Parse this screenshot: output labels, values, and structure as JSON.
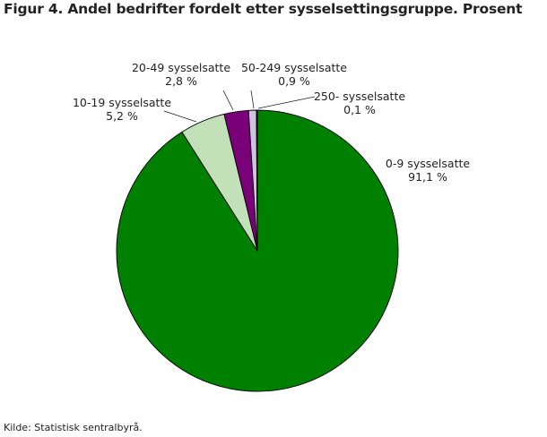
{
  "title": "Figur 4. Andel bedrifter fordelt etter sysselsettingsgruppe. Prosent",
  "source": "Kilde: Statistisk sentralbyrå.",
  "chart_data": {
    "type": "pie",
    "title": "Figur 4. Andel bedrifter fordelt etter sysselsettingsgruppe. Prosent",
    "slices": [
      {
        "label": "0-9 sysselsatte",
        "value": 91.1,
        "value_label": "91,1 %",
        "color": "#008000"
      },
      {
        "label": "10-19 sysselsatte",
        "value": 5.2,
        "value_label": "5,2 %",
        "color": "#c2e1b8"
      },
      {
        "label": "20-49 sysselsatte",
        "value": 2.8,
        "value_label": "2,8 %",
        "color": "#7a007a"
      },
      {
        "label": "50-249 sysselsatte",
        "value": 0.9,
        "value_label": "0,9 %",
        "color": "#d0c2e0"
      },
      {
        "label": "250- sysselsatte",
        "value": 0.1,
        "value_label": "0,1 %",
        "color": "#1a56c4"
      }
    ]
  }
}
